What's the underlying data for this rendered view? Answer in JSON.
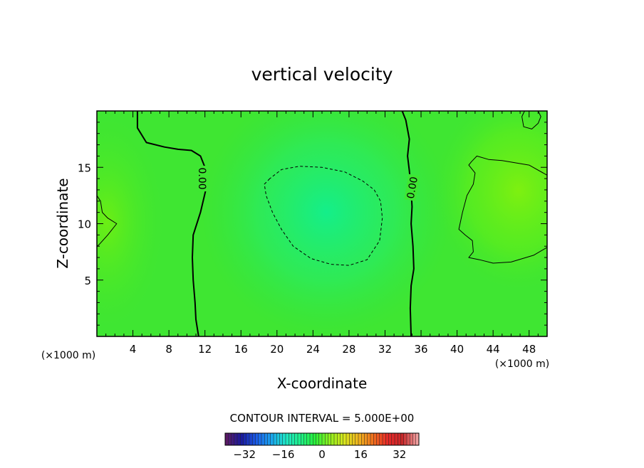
{
  "chart_data": {
    "type": "heatmap",
    "title": "vertical velocity",
    "xlabel": "X-coordinate",
    "ylabel": "Z-coordinate",
    "x_unit": "(×1000 m)",
    "y_unit": "(×1000 m)",
    "xlim": [
      0,
      50
    ],
    "ylim": [
      0,
      20
    ],
    "x_ticks": [
      4,
      8,
      12,
      16,
      20,
      24,
      28,
      32,
      36,
      40,
      44,
      48
    ],
    "y_ticks": [
      5,
      10,
      15
    ],
    "contour_interval_text": "CONTOUR INTERVAL = 5.000E+00",
    "contour_labels": [
      {
        "text": "0.00",
        "x": 11.7,
        "z": 14.0
      },
      {
        "text": "0.00",
        "x": 35.0,
        "z": 13.2
      }
    ],
    "contour_lines": [
      {
        "level": 0,
        "style": "solid-thick",
        "points": [
          [
            4.5,
            20
          ],
          [
            4.5,
            18.5
          ],
          [
            5.5,
            17.2
          ],
          [
            7.5,
            16.8
          ],
          [
            9,
            16.6
          ],
          [
            10.5,
            16.5
          ],
          [
            11.5,
            16
          ],
          [
            12,
            15
          ],
          [
            12.1,
            13
          ],
          [
            11.5,
            11
          ],
          [
            10.7,
            9
          ],
          [
            10.6,
            7
          ],
          [
            10.7,
            5
          ],
          [
            10.9,
            3
          ],
          [
            11,
            1.5
          ],
          [
            11.3,
            0
          ]
        ]
      },
      {
        "level": 0,
        "style": "solid-thick",
        "points": [
          [
            33.9,
            20
          ],
          [
            34.3,
            19.2
          ],
          [
            34.7,
            17.5
          ],
          [
            34.5,
            16
          ],
          [
            34.7,
            14.7
          ],
          [
            34.9,
            13
          ],
          [
            35,
            11.5
          ],
          [
            34.9,
            10
          ],
          [
            35.1,
            8
          ],
          [
            35.2,
            6
          ],
          [
            34.9,
            4.5
          ],
          [
            34.8,
            2.5
          ],
          [
            34.9,
            0
          ]
        ]
      },
      {
        "level": -5,
        "style": "dashed",
        "points": [
          [
            19.2,
            14
          ],
          [
            18.6,
            13.5
          ],
          [
            18.8,
            12.5
          ],
          [
            19.5,
            11
          ],
          [
            20.5,
            9.5
          ],
          [
            21.8,
            8
          ],
          [
            23.8,
            6.9
          ],
          [
            26,
            6.4
          ],
          [
            28,
            6.3
          ],
          [
            30,
            6.8
          ],
          [
            31.4,
            8.5
          ],
          [
            31.7,
            10.5
          ],
          [
            31.5,
            12
          ],
          [
            30.8,
            13
          ],
          [
            29.5,
            13.8
          ],
          [
            27.5,
            14.6
          ],
          [
            25,
            15
          ],
          [
            22.5,
            15.1
          ],
          [
            20.5,
            14.8
          ],
          [
            19.2,
            14
          ]
        ]
      },
      {
        "level": 5,
        "style": "solid-thin",
        "points": [
          [
            50,
            14.3
          ],
          [
            48,
            15.2
          ],
          [
            45,
            15.6
          ],
          [
            43.5,
            15.7
          ],
          [
            42.2,
            16
          ],
          [
            41.6,
            15.5
          ],
          [
            41.3,
            15.2
          ],
          [
            42,
            14.5
          ],
          [
            41.8,
            13.5
          ],
          [
            41.1,
            12.5
          ],
          [
            40.6,
            11
          ],
          [
            40.2,
            9.5
          ],
          [
            40.9,
            9
          ],
          [
            41.7,
            8.5
          ],
          [
            41.8,
            7.5
          ],
          [
            41.3,
            7
          ],
          [
            42.5,
            6.8
          ],
          [
            44,
            6.5
          ],
          [
            46,
            6.6
          ],
          [
            48.5,
            7.2
          ],
          [
            50,
            7.9
          ]
        ]
      },
      {
        "level": 5,
        "style": "solid-thin",
        "points": [
          [
            0,
            12.5
          ],
          [
            0.4,
            12
          ],
          [
            0.6,
            11
          ],
          [
            1.2,
            10.5
          ],
          [
            2.2,
            10
          ],
          [
            1.2,
            9
          ],
          [
            0.2,
            8.1
          ],
          [
            0,
            8
          ]
        ]
      },
      {
        "level": 5,
        "style": "solid-thin",
        "points": [
          [
            47.5,
            20
          ],
          [
            47.2,
            19.5
          ],
          [
            47.4,
            18.6
          ],
          [
            48.3,
            18.4
          ],
          [
            49,
            18.9
          ],
          [
            49.3,
            19.5
          ],
          [
            49,
            20
          ]
        ]
      }
    ],
    "field_extrema": [
      {
        "x": 26.5,
        "z": 11,
        "value": -9,
        "note": "lightest cyan-green region"
      },
      {
        "x": 46,
        "z": 12.5,
        "value": 8,
        "note": "yellow-green region"
      },
      {
        "x": 1,
        "z": 10,
        "value": 6,
        "note": "yellow-green region"
      }
    ],
    "colorbar": {
      "min": -40,
      "max": 40,
      "tick_labels": [
        "−32",
        "−16",
        "0",
        "16",
        "32"
      ],
      "tick_values": [
        -32,
        -16,
        0,
        16,
        32
      ],
      "colors": [
        "#5a1a66",
        "#1a1a9e",
        "#1a5ae6",
        "#1aa0f0",
        "#1ee6c8",
        "#1ef08c",
        "#28f03c",
        "#8cf01e",
        "#d7e61e",
        "#f0b41e",
        "#f06e1e",
        "#e62828",
        "#c8282a",
        "#f0a0a0"
      ]
    },
    "grid": false
  }
}
